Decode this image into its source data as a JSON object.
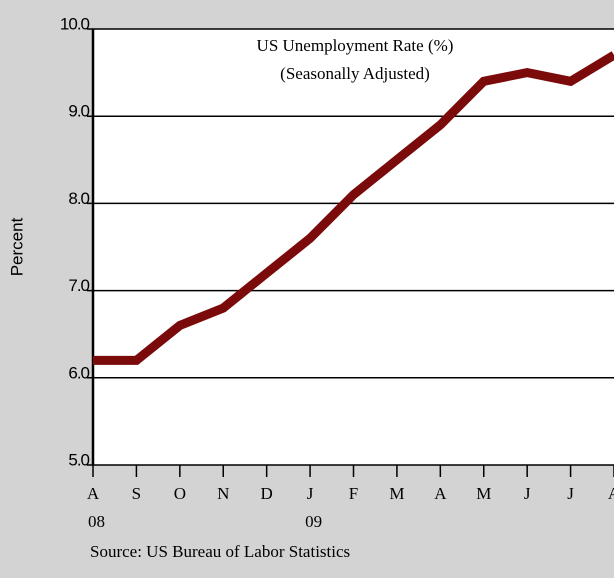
{
  "chart_data": {
    "type": "line",
    "title": "US Unemployment Rate (%)",
    "subtitle": "(Seasonally Adjusted)",
    "ylabel": "Percent",
    "source": "Source: US Bureau of Labor Statistics",
    "categories": [
      "A",
      "S",
      "O",
      "N",
      "D",
      "J",
      "F",
      "M",
      "A",
      "M",
      "J",
      "J",
      "A"
    ],
    "category_years": [
      "08",
      null,
      null,
      null,
      null,
      "09",
      null,
      null,
      null,
      null,
      null,
      null,
      null
    ],
    "series": [
      {
        "name": "Unemployment Rate",
        "color": "#7b0a0a",
        "values": [
          6.2,
          6.2,
          6.6,
          6.8,
          7.2,
          7.6,
          8.1,
          8.5,
          8.9,
          9.4,
          9.5,
          9.4,
          9.7
        ]
      }
    ],
    "ylim": [
      5,
      10
    ],
    "yticks": [
      {
        "value": 5,
        "label": "5.0"
      },
      {
        "value": 6,
        "label": "6.0"
      },
      {
        "value": 7,
        "label": "7.0"
      },
      {
        "value": 8,
        "label": "8.0"
      },
      {
        "value": 9,
        "label": "9.0"
      },
      {
        "value": 10,
        "label": "10.0"
      }
    ],
    "grid": true
  }
}
